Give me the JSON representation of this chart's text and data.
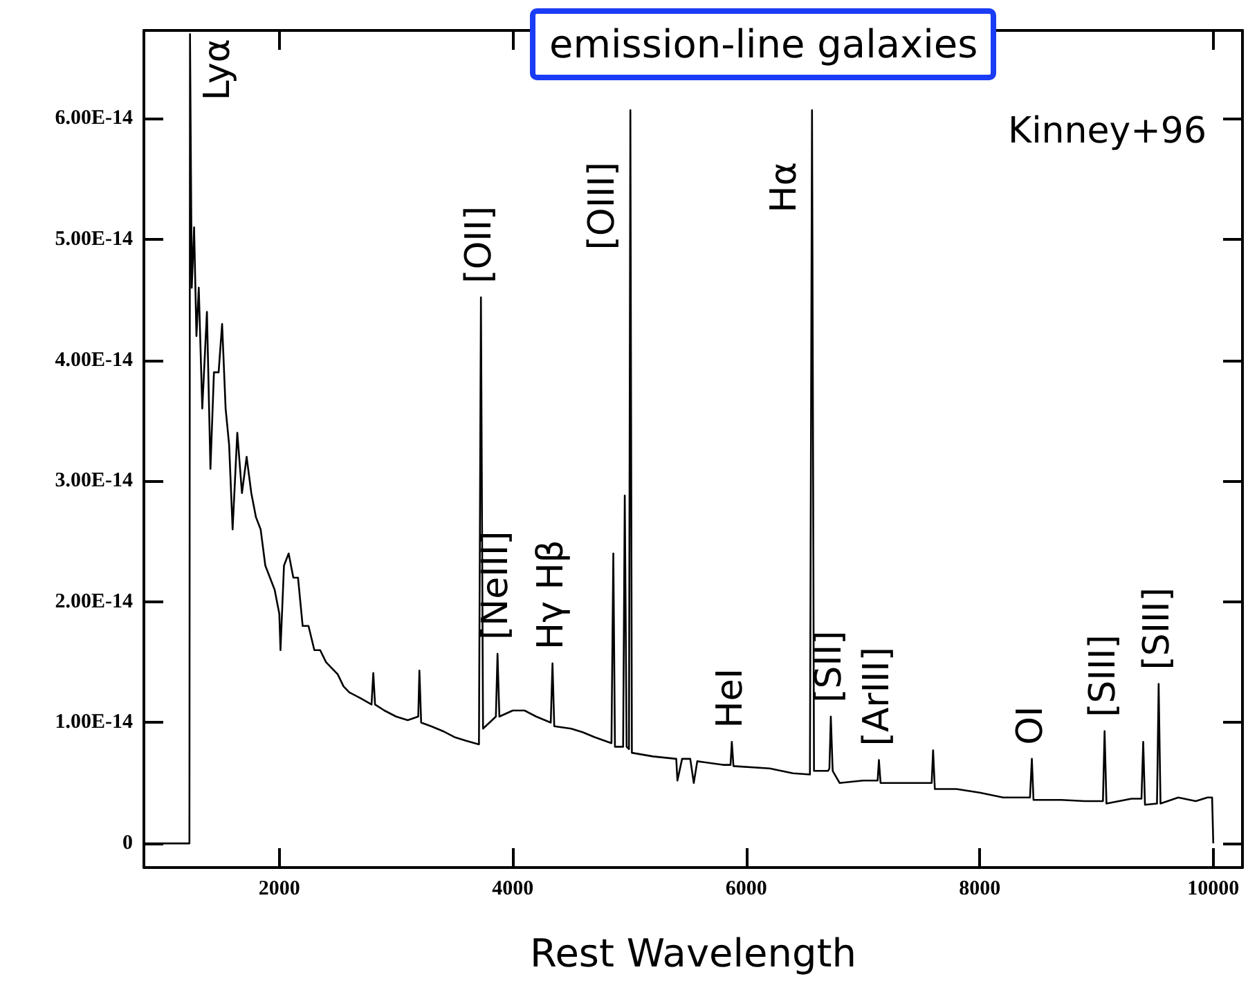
{
  "chart_data": {
    "type": "line",
    "title": "emission-line galaxies",
    "xlabel": "Rest Wavelength",
    "x": [
      840,
      1230,
      1235,
      1250,
      1270,
      1290,
      1310,
      1340,
      1380,
      1410,
      1440,
      1480,
      1510,
      1540,
      1570,
      1600,
      1640,
      1680,
      1720,
      1760,
      1800,
      1840,
      1880,
      1920,
      1960,
      2000,
      2010,
      2040,
      2080,
      2120,
      2160,
      2200,
      2250,
      2300,
      2350,
      2400,
      2450,
      2500,
      2550,
      2600,
      2700,
      2790,
      2805,
      2820,
      2900,
      3000,
      3100,
      3190,
      3200,
      3215,
      3300,
      3400,
      3500,
      3600,
      3710,
      3727,
      3745,
      3800,
      3855,
      3869,
      3885,
      4000,
      4100,
      4200,
      4325,
      4340,
      4355,
      4500,
      4600,
      4700,
      4845,
      4861,
      4875,
      4945,
      4959,
      4975,
      4995,
      5007,
      5020,
      5200,
      5400,
      5410,
      5450,
      5520,
      5550,
      5580,
      5800,
      5865,
      5876,
      5890,
      6200,
      6400,
      6545,
      6563,
      6580,
      6700,
      6712,
      6724,
      6740,
      6800,
      7000,
      7125,
      7136,
      7150,
      7400,
      7588,
      7600,
      7615,
      7800,
      8000,
      8200,
      8430,
      8446,
      8460,
      8700,
      8900,
      9055,
      9069,
      9085,
      9300,
      9385,
      9400,
      9415,
      9518,
      9532,
      9548,
      9700,
      9850,
      9950,
      9990,
      10000
    ],
    "values": [
      0,
      0,
      6.7e-14,
      4.6e-14,
      5.1e-14,
      4.2e-14,
      4.6e-14,
      3.6e-14,
      4.4e-14,
      3.1e-14,
      3.9e-14,
      3.9e-14,
      4.3e-14,
      3.6e-14,
      3.3e-14,
      2.6e-14,
      3.4e-14,
      2.9e-14,
      3.2e-14,
      2.9e-14,
      2.7e-14,
      2.6e-14,
      2.3e-14,
      2.2e-14,
      2.1e-14,
      1.9e-14,
      1.6e-14,
      2.3e-14,
      2.4e-14,
      2.2e-14,
      2.2e-14,
      1.8e-14,
      1.8e-14,
      1.6e-14,
      1.6e-14,
      1.5e-14,
      1.45e-14,
      1.4e-14,
      1.3e-14,
      1.25e-14,
      1.2e-14,
      1.15e-14,
      1.41e-14,
      1.15e-14,
      1.1e-14,
      1.05e-14,
      1.02e-14,
      1.05e-14,
      1.43e-14,
      1e-14,
      9.7e-15,
      9.3e-15,
      8.8e-15,
      8.5e-15,
      8.2e-15,
      4.52e-14,
      9.5e-15,
      1e-14,
      1.05e-14,
      1.57e-14,
      1.05e-14,
      1.1e-14,
      1.1e-14,
      1.05e-14,
      1e-14,
      1.49e-14,
      9.7e-15,
      9.5e-15,
      9.2e-15,
      8.8e-15,
      8.3e-15,
      2.4e-14,
      8e-15,
      8e-15,
      2.88e-14,
      8e-15,
      7.8e-15,
      6.07e-14,
      7.5e-15,
      7.2e-15,
      7e-15,
      5.2e-15,
      7e-15,
      7e-15,
      5e-15,
      6.8e-15,
      6.5e-15,
      6.5e-15,
      8.4e-15,
      6.4e-15,
      6.2e-15,
      5.8e-15,
      5.7e-15,
      6.07e-14,
      6e-15,
      6e-15,
      6.2e-15,
      1.05e-14,
      6e-15,
      5e-15,
      5.2e-15,
      5.2e-15,
      6.9e-15,
      5e-15,
      5e-15,
      5e-15,
      7.7e-15,
      4.5e-15,
      4.5e-15,
      4.2e-15,
      3.8e-15,
      3.8e-15,
      7e-15,
      3.6e-15,
      3.6e-15,
      3.5e-15,
      3.5e-15,
      9.3e-15,
      3.3e-15,
      3.7e-15,
      3.7e-15,
      8.4e-15,
      3.2e-15,
      3.3e-15,
      1.32e-14,
      3.3e-15,
      3.8e-15,
      3.5e-15,
      3.8e-15,
      3.8e-15,
      0
    ],
    "color": "#000000",
    "marker": "none",
    "line_style": "solid",
    "grid": false,
    "xlim": [
      840,
      10250
    ],
    "xticks": [
      2000,
      4000,
      6000,
      8000,
      10000
    ],
    "ylim": [
      -2e-15,
      6.73e-14
    ],
    "yticks": [
      0,
      {
        "value": 1e-14,
        "label": "1.00E-14"
      },
      {
        "value": 2e-14,
        "label": "2.00E-14"
      },
      {
        "value": 3e-14,
        "label": "3.00E-14"
      },
      {
        "value": 4e-14,
        "label": "4.00E-14"
      },
      {
        "value": 5e-14,
        "label": "5.00E-14"
      },
      {
        "value": 6e-14,
        "label": "6.00E-14"
      }
    ],
    "annotations": [
      {
        "text": "Lyα",
        "x": 1235,
        "y": 6.7e-14
      },
      {
        "text": "[OII]",
        "x": 3727,
        "y": 4.52e-14
      },
      {
        "text": "[OIII]",
        "x": 5007,
        "y": 6.07e-14
      },
      {
        "text": "Hα",
        "x": 6563,
        "y": 6.07e-14
      },
      {
        "text": "[NeIII]",
        "x": 3869,
        "y": 1.57e-14
      },
      {
        "text": "Hγ Hβ",
        "x": 4340,
        "y": 1.49e-14
      },
      {
        "text": "HeI",
        "x": 5876,
        "y": 8.4e-15
      },
      {
        "text": "[SII]",
        "x": 6724,
        "y": 1.05e-14
      },
      {
        "text": "[ArIII]",
        "x": 7136,
        "y": 6.9e-15
      },
      {
        "text": "OI",
        "x": 8446,
        "y": 7e-15
      },
      {
        "text": "[SIII]",
        "x": 9069,
        "y": 9.3e-15
      },
      {
        "text": "[SIII]",
        "x": 9532,
        "y": 1.32e-14
      },
      "Kinney+96"
    ]
  }
}
